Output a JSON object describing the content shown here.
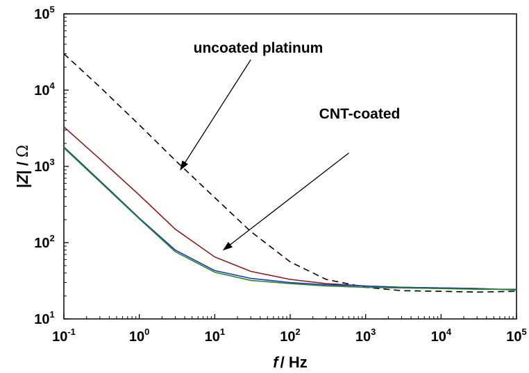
{
  "chart_data": {
    "type": "line",
    "title": "",
    "xscale": "log",
    "yscale": "log",
    "xlim": [
      0.1,
      100000
    ],
    "ylim": [
      10,
      100000
    ],
    "xlabel": {
      "var": "f",
      "unit": "/ Hz"
    },
    "ylabel": {
      "prefix": "|",
      "var": "Z",
      "mid": "| / ",
      "unit": "Ω"
    },
    "x_ticks": [
      {
        "base": "10",
        "exp": "-1",
        "value": 0.1
      },
      {
        "base": "10",
        "exp": "0",
        "value": 1
      },
      {
        "base": "10",
        "exp": "1",
        "value": 10
      },
      {
        "base": "10",
        "exp": "2",
        "value": 100
      },
      {
        "base": "10",
        "exp": "3",
        "value": 1000
      },
      {
        "base": "10",
        "exp": "4",
        "value": 10000
      },
      {
        "base": "10",
        "exp": "5",
        "value": 100000
      }
    ],
    "y_ticks": [
      {
        "base": "10",
        "exp": "1",
        "value": 10
      },
      {
        "base": "10",
        "exp": "2",
        "value": 100
      },
      {
        "base": "10",
        "exp": "3",
        "value": 1000
      },
      {
        "base": "10",
        "exp": "4",
        "value": 10000
      },
      {
        "base": "10",
        "exp": "5",
        "value": 100000
      }
    ],
    "grid": false,
    "legend": "none",
    "series": [
      {
        "color": "#000000",
        "dash": "dashed",
        "x": [
          0.1,
          0.3,
          1,
          3,
          10,
          30,
          100,
          300,
          1000,
          3000,
          10000,
          30000,
          100000
        ],
        "y": [
          30000,
          11000,
          3500,
          1200,
          390,
          140,
          56,
          33,
          26,
          23.5,
          23,
          22.5,
          23
        ]
      },
      {
        "color": "#8B1A1A",
        "dash": "solid",
        "x": [
          0.1,
          0.3,
          1,
          3,
          10,
          30,
          100,
          300,
          1000,
          3000,
          10000,
          30000,
          100000
        ],
        "y": [
          3300,
          1250,
          420,
          150,
          65,
          42,
          33,
          29,
          27,
          26,
          25.5,
          25,
          24
        ]
      },
      {
        "color": "#1F2FC8",
        "dash": "solid",
        "x": [
          0.1,
          0.3,
          1,
          3,
          10,
          30,
          100,
          300,
          1000,
          3000,
          10000,
          30000,
          100000
        ],
        "y": [
          1800,
          650,
          210,
          80,
          43,
          34,
          30,
          28,
          27,
          26,
          25.5,
          25,
          24
        ]
      },
      {
        "color": "#1E8A1E",
        "dash": "solid",
        "x": [
          0.1,
          0.3,
          1,
          3,
          10,
          30,
          100,
          300,
          1000,
          3000,
          10000,
          30000,
          100000
        ],
        "y": [
          1750,
          630,
          205,
          76,
          41,
          32,
          29,
          27,
          26,
          25.5,
          25,
          24.5,
          24.5
        ]
      }
    ],
    "annotations": [
      {
        "text": "uncoated platinum",
        "from": [
          30,
          25000
        ],
        "to": [
          3.5,
          900
        ]
      },
      {
        "text": "CNT-coated",
        "from": [
          600,
          1500
        ],
        "to": [
          13,
          80
        ]
      }
    ]
  }
}
